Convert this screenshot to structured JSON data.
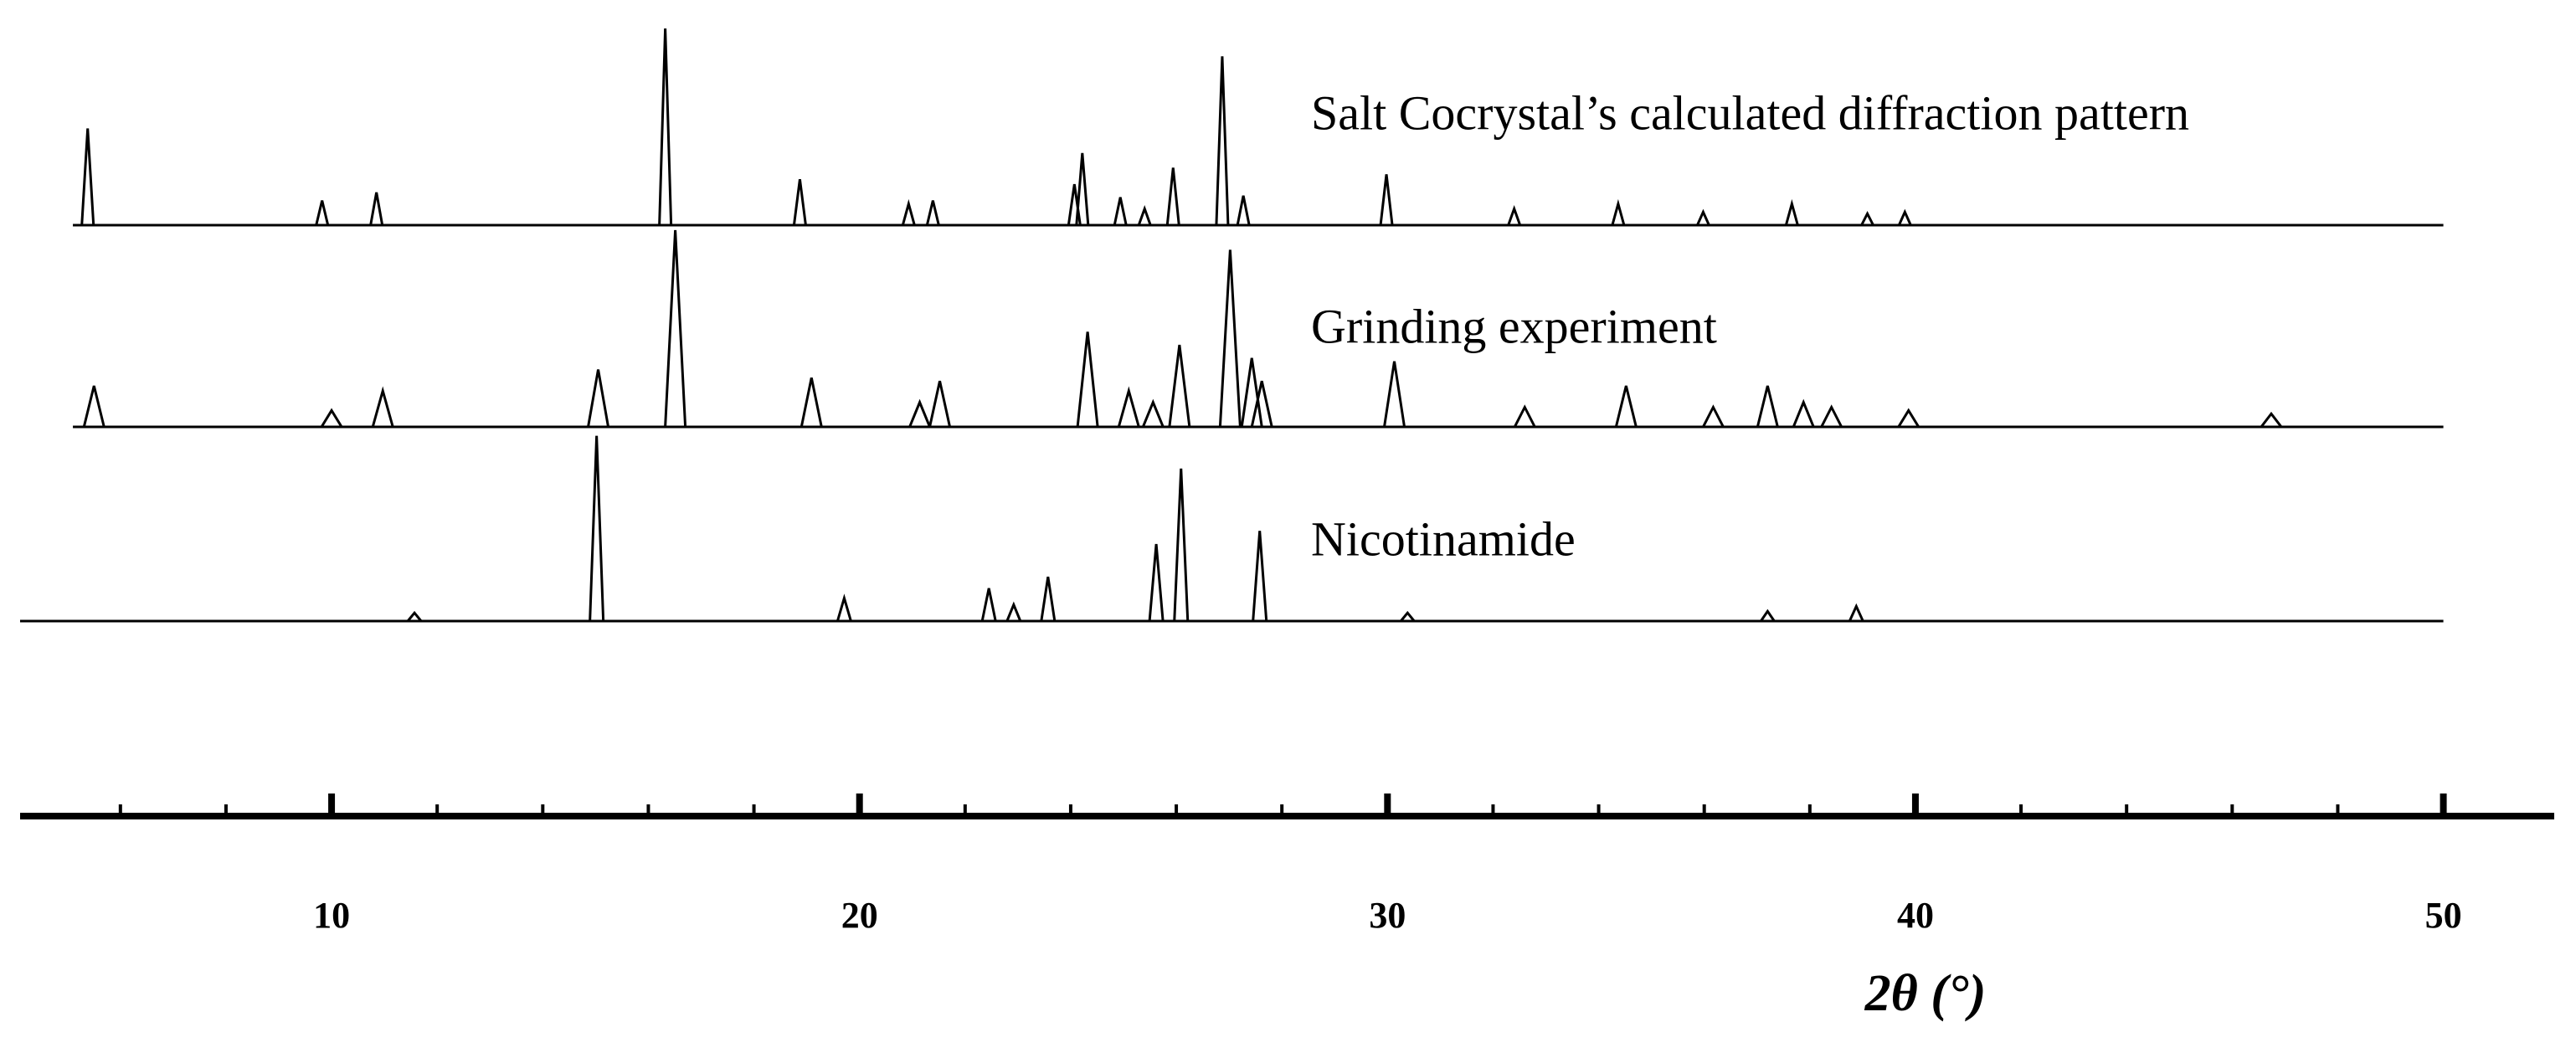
{
  "chart_data": {
    "type": "spectrum",
    "xlabel": "2θ (°)",
    "xlim": [
      4.1,
      52.1
    ],
    "ylim": [
      0,
      120
    ],
    "xticks": [
      10,
      20,
      30,
      40,
      50
    ],
    "xminorticks": [
      6,
      8,
      12,
      14,
      16,
      18,
      22,
      24,
      26,
      28,
      32,
      34,
      36,
      38,
      42,
      44,
      46,
      48
    ],
    "series": [
      {
        "name": "Salt Cocrystal’s calculated diffraction pattern",
        "color": "#000000",
        "xrange": [
          5.1,
          50
        ],
        "x": [
          5.38,
          9.82,
          10.85,
          16.32,
          18.87,
          20.93,
          21.39,
          24.07,
          24.22,
          24.94,
          25.4,
          25.94,
          26.87,
          27.27,
          29.98,
          32.4,
          34.37,
          35.98,
          37.66,
          39.09,
          39.8
        ],
        "values": [
          59,
          15,
          20,
          120,
          28,
          13,
          15,
          25,
          44,
          17,
          10,
          35,
          103,
          18,
          31,
          10,
          13,
          8,
          13,
          7,
          8
        ]
      },
      {
        "name": "Grinding experiment",
        "color": "#000000",
        "xrange": [
          5.1,
          50
        ],
        "x": [
          5.5,
          10.0,
          10.97,
          15.05,
          16.51,
          19.09,
          21.14,
          21.52,
          24.32,
          25.1,
          25.56,
          26.06,
          27.02,
          27.43,
          27.62,
          30.13,
          32.6,
          34.52,
          36.17,
          37.2,
          37.88,
          38.41,
          39.87,
          46.74
        ],
        "values": [
          25,
          10,
          22,
          35,
          120,
          30,
          15,
          28,
          58,
          22,
          15,
          50,
          108,
          42,
          28,
          40,
          12,
          25,
          12,
          25,
          15,
          12,
          10,
          8
        ]
      },
      {
        "name": "Nicotinamide",
        "color": "#000000",
        "xrange": [
          4.1,
          50
        ],
        "x": [
          11.57,
          15.02,
          19.71,
          22.45,
          22.92,
          23.57,
          25.62,
          26.09,
          27.58,
          30.38,
          37.2,
          38.88
        ],
        "values": [
          5,
          113,
          14,
          20,
          10,
          27,
          47,
          93,
          55,
          5,
          6,
          9
        ]
      }
    ]
  }
}
